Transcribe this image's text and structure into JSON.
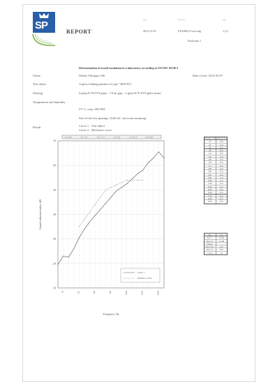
{
  "logo": {
    "text": "SP"
  },
  "report_title": "REPORT",
  "header": {
    "labels": [
      "Date",
      "Reference",
      "Page"
    ],
    "date": "2012-12-01",
    "reference": "PX23682-S-xxx.eng",
    "page": "1 (1)",
    "enclosure": "Enclosure 1"
  },
  "main_title": "Determination of sound insulation in a laboratory according to EN ISO 10140-2",
  "rows": {
    "client_label": "Client",
    "client_value": "Windo Vikvägen 100",
    "test_date": "Date of test: 2012-03-07",
    "object_label": "Test object",
    "object_value": "A glass folding partition of type \"2000 FG\"",
    "glazing_label": "Glazing",
    "glazing_value": "4 glass/0,76 EVA glass – 19 air gap – 5 glass/0,76 EVA glass (mm)",
    "temp_label": "Temperature and humidity",
    "temp_value": "21° C, resp. 24% RH",
    "size_value": "Size of the test opening: 10,00 m², one room mounting",
    "result_label": "Result",
    "result_curve1": "Curve 1 – Test object",
    "result_curve2": "Curve 2 – Reference curve"
  },
  "chart_data": {
    "type": "line",
    "x": [
      "50",
      "63",
      "80",
      "100",
      "125",
      "160",
      "200",
      "250",
      "315",
      "400",
      "500",
      "630",
      "800",
      "1000",
      "1250",
      "1600",
      "2000",
      "2500",
      "3150",
      "4000",
      "5000"
    ],
    "series": [
      {
        "name": "Curve 1",
        "values": [
          19.5,
          23.0,
          22.5,
          26.0,
          30.5,
          34.0,
          37.0,
          39.5,
          42.0,
          44.5,
          47.0,
          49.5,
          51.0,
          52.5,
          54.5,
          56.5,
          58.0,
          61.0,
          63.0,
          65.5,
          63.0
        ],
        "color": "#777777",
        "dashed": false
      },
      {
        "name": "Reference curve",
        "values": [
          null,
          null,
          null,
          null,
          35.0,
          38.0,
          41.0,
          44.0,
          47.0,
          50.0,
          51.0,
          52.0,
          53.0,
          54.0,
          54.0,
          54.0,
          54.0,
          null,
          null,
          null,
          null
        ],
        "color": "#999999",
        "dashed": true
      }
    ],
    "ylabel": "Sound reduction index, dB",
    "xlabel": "Frequency, Hz",
    "ylim": [
      10,
      70
    ],
    "yticks": [
      10,
      20,
      30,
      40,
      50,
      60,
      70
    ],
    "grid": true,
    "legend": "bottom-right",
    "top_bar_labels": [
      "Rw 44 dB",
      "Rw+C 43",
      "Rw+Ctr 41",
      "C 50-3150",
      "Ctr 50-3150",
      "C 100-5000"
    ]
  },
  "freq_table": {
    "headers": [
      "Frequency f Hz",
      "Sound red. R dB"
    ],
    "rows": [
      [
        "50",
        "19.5"
      ],
      [
        "63",
        "23.0"
      ],
      [
        "80",
        "22.5"
      ],
      [
        "100",
        "26.0"
      ],
      [
        "125",
        "30.5"
      ],
      [
        "160",
        "34.0"
      ],
      [
        "200",
        "37.0"
      ],
      [
        "250",
        "39.5"
      ],
      [
        "315",
        "42.0"
      ],
      [
        "400",
        "44.5"
      ],
      [
        "500",
        "47.0"
      ],
      [
        "630",
        "49.5"
      ],
      [
        "800",
        "51.0"
      ],
      [
        "1000",
        "52.5"
      ],
      [
        "1250",
        "54.5"
      ],
      [
        "1600",
        "56.5"
      ],
      [
        "2000",
        "58.0"
      ],
      [
        "2500",
        "61.0"
      ],
      [
        "3150",
        "63.0"
      ],
      [
        "4000",
        "65.5"
      ],
      [
        "5000",
        "63.0"
      ]
    ]
  },
  "rating_table": {
    "rows": [
      [
        "Rw",
        "44"
      ],
      [
        "Rw+C",
        "43 dB"
      ],
      [
        "Rw+Ctr",
        "41 dB"
      ],
      [
        "Range",
        "-"
      ],
      [
        "Rw+C50-",
        "43.0"
      ],
      [
        "Rw+Ctr",
        "40.0"
      ],
      [
        "Categ.",
        "44"
      ]
    ]
  }
}
